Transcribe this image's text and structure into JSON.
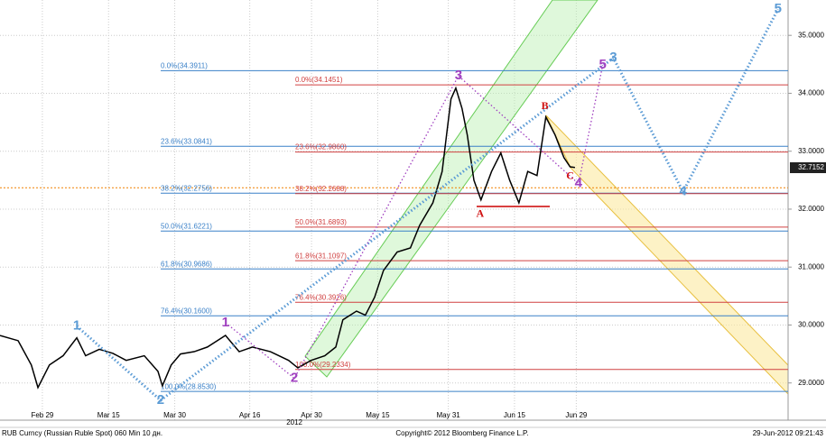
{
  "chart_data": {
    "type": "line",
    "series": [
      {
        "name": "RUB Curncy",
        "color": "#000000",
        "x": [
          50.4,
          54.5,
          57.5,
          59,
          61.6,
          64.7,
          67.8,
          69.8,
          72.9,
          76,
          79,
          83.1,
          86.2,
          87.2,
          89.2,
          91.3,
          94.4,
          97.4,
          101.5,
          104.6,
          107.6,
          111.7,
          115.8,
          117.9,
          120.9,
          124,
          126.5,
          128.1,
          131.2,
          133.2,
          135.3,
          137.3,
          140.4,
          143.4,
          145.5,
          148.5,
          150.6,
          151.6,
          152.6,
          153.7,
          155.1,
          156.3,
          157.8,
          159.4,
          161.8,
          163.9,
          165.9,
          168,
          170,
          172.1,
          174.1,
          176.2,
          178.2,
          179.6,
          180.7
        ],
        "values": [
          29.82,
          29.73,
          29.31,
          28.92,
          29.31,
          29.47,
          29.78,
          29.47,
          29.58,
          29.51,
          29.39,
          29.47,
          29.2,
          28.95,
          29.31,
          29.5,
          29.54,
          29.62,
          29.82,
          29.54,
          29.62,
          29.54,
          29.39,
          29.26,
          29.39,
          29.47,
          29.62,
          30.09,
          30.24,
          30.17,
          30.48,
          30.94,
          31.26,
          31.33,
          31.72,
          32.11,
          32.65,
          33.28,
          33.9,
          34.09,
          33.74,
          33.28,
          32.5,
          32.16,
          32.65,
          32.97,
          32.5,
          32.11,
          32.65,
          32.58,
          33.59,
          33.28,
          32.89,
          32.73,
          32.72
        ]
      }
    ],
    "xlim": [
      50.4,
      229
    ],
    "xticks": [
      {
        "value": 60,
        "label": "Feb 29"
      },
      {
        "value": 75,
        "label": "Mar 15"
      },
      {
        "value": 90,
        "label": "Mar 30"
      },
      {
        "value": 107,
        "label": "Apr 16"
      },
      {
        "value": 121,
        "label": "Apr 30"
      },
      {
        "value": 136,
        "label": "May 15"
      },
      {
        "value": 152,
        "label": "May 31"
      },
      {
        "value": 167,
        "label": "Jun 15"
      },
      {
        "value": 181,
        "label": "Jun 29"
      }
    ],
    "year_label": "2012",
    "ylim": [
      28.42,
      35.61
    ],
    "yticks": [
      {
        "value": 29,
        "label": "29.0000"
      },
      {
        "value": 30,
        "label": "30.0000"
      },
      {
        "value": 31,
        "label": "31.0000"
      },
      {
        "value": 32,
        "label": "32.0000"
      },
      {
        "value": 33,
        "label": "33.0000"
      },
      {
        "value": 34,
        "label": "34.0000"
      },
      {
        "value": 35,
        "label": "35.0000"
      }
    ],
    "last_price": {
      "value": 32.7152,
      "label": "32.7152"
    },
    "orange_level": 32.37,
    "fib_blue": [
      {
        "value": 34.3911,
        "label": "0.0%(34.3911)"
      },
      {
        "value": 33.0841,
        "label": "23.6%(33.0841)"
      },
      {
        "value": 32.2756,
        "label": "38.2%(32.2756)"
      },
      {
        "value": 31.6221,
        "label": "50.0%(31.6221)"
      },
      {
        "value": 30.9686,
        "label": "61.8%(30.9686)"
      },
      {
        "value": 30.16,
        "label": "76.4%(30.1600)"
      },
      {
        "value": 28.853,
        "label": "100.0%(28.8530)"
      }
    ],
    "fib_red": [
      {
        "value": 34.1451,
        "label": "0.0%(34.1451)"
      },
      {
        "value": 32.986,
        "label": "23.6%(32.9860)"
      },
      {
        "value": 32.2688,
        "label": "38.2%(32.2688)"
      },
      {
        "value": 31.6893,
        "label": "50.0%(31.6893)"
      },
      {
        "value": 31.1097,
        "label": "61.8%(31.1097)"
      },
      {
        "value": 30.3926,
        "label": "76.4%(30.3926)"
      },
      {
        "value": 29.2334,
        "label": "100.0%(29.2334)"
      }
    ],
    "waves_blue": [
      {
        "text": "1",
        "x": 67.8,
        "y": 29.98
      },
      {
        "text": "2",
        "x": 86.8,
        "y": 28.7
      },
      {
        "text": "3",
        "x": 189.4,
        "y": 34.61
      },
      {
        "text": "4",
        "x": 205.2,
        "y": 32.3
      },
      {
        "text": "5",
        "x": 226.7,
        "y": 35.45
      }
    ],
    "waves_purple": [
      {
        "text": "1",
        "x": 101.5,
        "y": 30.04
      },
      {
        "text": "2",
        "x": 117.1,
        "y": 29.08
      },
      {
        "text": "3",
        "x": 154.3,
        "y": 34.3
      },
      {
        "text": "4",
        "x": 181.5,
        "y": 32.44
      },
      {
        "text": "5",
        "x": 187,
        "y": 34.49
      }
    ],
    "waves_red": [
      {
        "text": "A",
        "x": 159.2,
        "y": 31.91
      },
      {
        "text": "B",
        "x": 173.9,
        "y": 33.77
      },
      {
        "text": "C",
        "x": 179.6,
        "y": 32.56
      }
    ],
    "footer_left": "RUB Curncy (Russian Ruble Spot) 060 Min 10 дн.",
    "footer_center": "Copyright© 2012 Bloomberg Finance L.P.",
    "footer_right": "29-Jun-2012 09:21:43"
  }
}
